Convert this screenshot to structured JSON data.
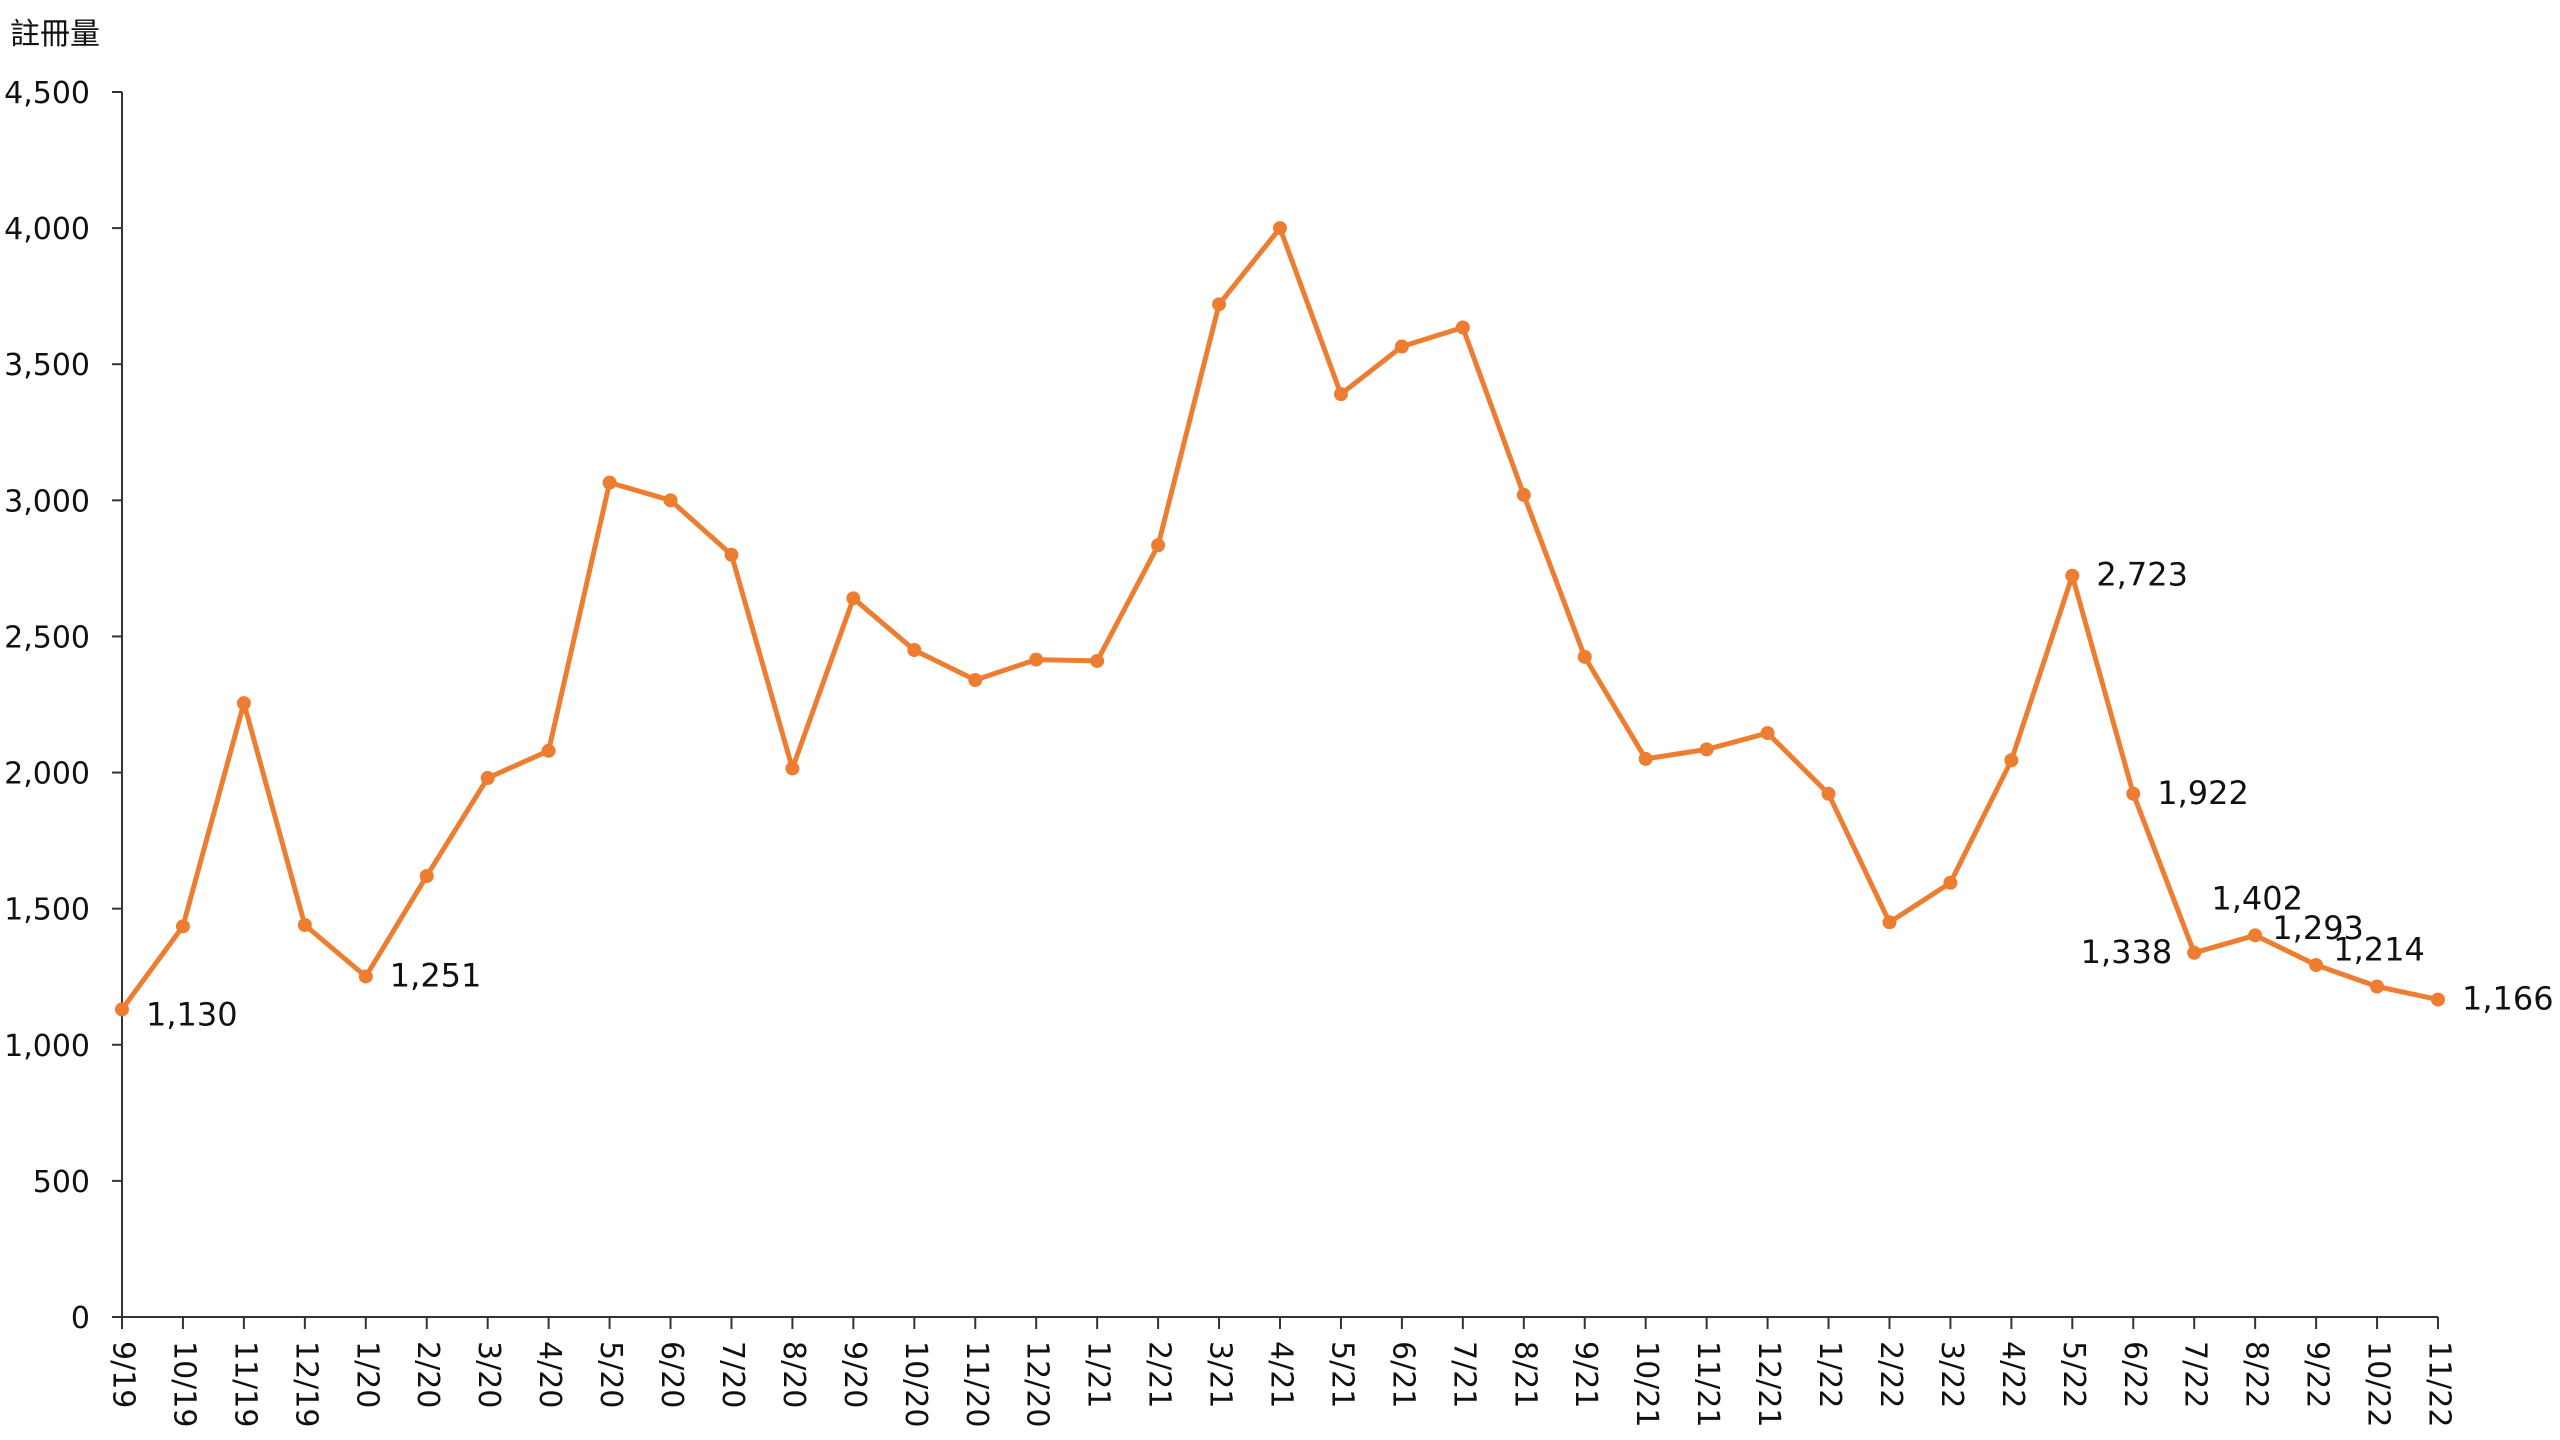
{
  "chart_data": {
    "type": "line",
    "title": "",
    "xlabel": "",
    "ylabel": "註冊量",
    "ylim": [
      0,
      4500
    ],
    "yticks": [
      0,
      500,
      1000,
      1500,
      2000,
      2500,
      3000,
      3500,
      4000,
      4500
    ],
    "ytick_labels": [
      "0",
      "500",
      "1,000",
      "1,500",
      "2,000",
      "2,500",
      "3,000",
      "3,500",
      "4,000",
      "4,500"
    ],
    "grid": false,
    "legend": "none",
    "line_color": "#ED7D31",
    "categories": [
      "9/19",
      "10/19",
      "11/19",
      "12/19",
      "1/20",
      "2/20",
      "3/20",
      "4/20",
      "5/20",
      "6/20",
      "7/20",
      "8/20",
      "9/20",
      "10/20",
      "11/20",
      "12/20",
      "1/21",
      "2/21",
      "3/21",
      "4/21",
      "5/21",
      "6/21",
      "7/21",
      "8/21",
      "9/21",
      "10/21",
      "11/21",
      "12/21",
      "1/22",
      "2/22",
      "3/22",
      "4/22",
      "5/22",
      "6/22",
      "7/22",
      "8/22",
      "9/22",
      "10/22",
      "11/22"
    ],
    "series": [
      {
        "values": [
          1130,
          1435,
          2255,
          1440,
          1251,
          1620,
          1980,
          2080,
          3065,
          3000,
          2800,
          2015,
          2640,
          2450,
          2340,
          2415,
          2410,
          2835,
          3720,
          4000,
          3390,
          3565,
          3635,
          3020,
          2425,
          2050,
          2085,
          2145,
          1922,
          1450,
          1595,
          2045,
          2723,
          1922,
          1338,
          1402,
          1293,
          1214,
          1166
        ]
      }
    ],
    "annotations": [
      {
        "index": 0,
        "text": "1,130",
        "position": "right-below"
      },
      {
        "index": 4,
        "text": "1,251",
        "position": "right"
      },
      {
        "index": 32,
        "text": "2,723",
        "position": "right"
      },
      {
        "index": 33,
        "text": "1,922",
        "position": "right"
      },
      {
        "index": 34,
        "text": "1,338",
        "position": "left"
      },
      {
        "index": 35,
        "text": "1,402",
        "position": "above"
      },
      {
        "index": 36,
        "text": "1,293",
        "position": "above"
      },
      {
        "index": 37,
        "text": "1,214",
        "position": "above"
      },
      {
        "index": 38,
        "text": "1,166",
        "position": "right"
      }
    ]
  }
}
